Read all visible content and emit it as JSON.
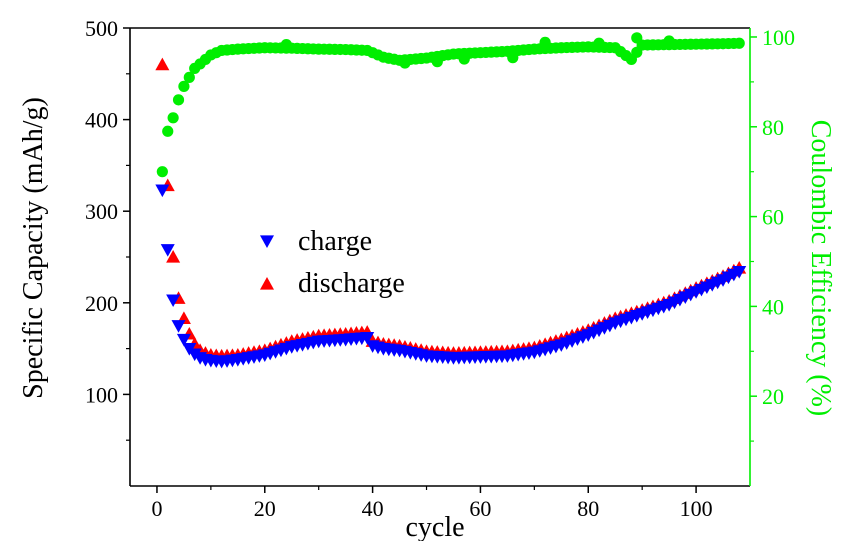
{
  "chart_data": {
    "type": "scatter",
    "xlabel": "cycle",
    "ylabel": "Specific Capacity (mAh/g)",
    "y2label": "Coulombic Efficiency (%)",
    "xlim": [
      -5,
      110
    ],
    "ylim": [
      0,
      500
    ],
    "y2lim": [
      0,
      102
    ],
    "xticks": [
      0,
      20,
      40,
      60,
      80,
      100
    ],
    "yticks": [
      100,
      200,
      300,
      400,
      500
    ],
    "y2ticks": [
      20,
      40,
      60,
      80,
      100
    ],
    "legend": {
      "position": "center-left",
      "entries": [
        "charge",
        "discharge"
      ]
    },
    "colors": {
      "charge": "#0000ff",
      "discharge": "#ff0000",
      "efficiency": "#00ee00",
      "axis": "#000000",
      "right_axis": "#00ee00"
    },
    "anchors": {
      "charge": [
        [
          1,
          323
        ],
        [
          2,
          258
        ],
        [
          3,
          203
        ],
        [
          4,
          175
        ],
        [
          5,
          160
        ],
        [
          6,
          150
        ],
        [
          7,
          144
        ],
        [
          8,
          140
        ],
        [
          9,
          138
        ],
        [
          10,
          137
        ],
        [
          12,
          136
        ],
        [
          15,
          138
        ],
        [
          20,
          143
        ],
        [
          25,
          152
        ],
        [
          30,
          158
        ],
        [
          35,
          160
        ],
        [
          39,
          162
        ],
        [
          40,
          153
        ],
        [
          42,
          150
        ],
        [
          45,
          148
        ],
        [
          50,
          142
        ],
        [
          55,
          140
        ],
        [
          60,
          141
        ],
        [
          65,
          142
        ],
        [
          70,
          146
        ],
        [
          75,
          154
        ],
        [
          80,
          165
        ],
        [
          85,
          178
        ],
        [
          90,
          188
        ],
        [
          95,
          198
        ],
        [
          100,
          212
        ],
        [
          105,
          225
        ],
        [
          108,
          234
        ]
      ],
      "discharge": [
        [
          1,
          460
        ],
        [
          2,
          328
        ],
        [
          3,
          250
        ],
        [
          4,
          205
        ],
        [
          5,
          183
        ],
        [
          6,
          166
        ],
        [
          7,
          155
        ],
        [
          8,
          148
        ],
        [
          9,
          145
        ],
        [
          10,
          143
        ],
        [
          12,
          142
        ],
        [
          15,
          143
        ],
        [
          20,
          148
        ],
        [
          25,
          158
        ],
        [
          30,
          164
        ],
        [
          35,
          166
        ],
        [
          39,
          168
        ],
        [
          40,
          158
        ],
        [
          42,
          155
        ],
        [
          45,
          153
        ],
        [
          50,
          147
        ],
        [
          55,
          145
        ],
        [
          60,
          146
        ],
        [
          65,
          147
        ],
        [
          70,
          151
        ],
        [
          75,
          160
        ],
        [
          80,
          170
        ],
        [
          85,
          183
        ],
        [
          90,
          192
        ],
        [
          95,
          202
        ],
        [
          100,
          216
        ],
        [
          105,
          229
        ],
        [
          108,
          238
        ]
      ],
      "efficiency": [
        [
          1,
          70
        ],
        [
          2,
          79
        ],
        [
          3,
          82
        ],
        [
          4,
          86
        ],
        [
          5,
          89
        ],
        [
          6,
          91
        ],
        [
          7,
          93
        ],
        [
          8,
          94
        ],
        [
          9,
          95
        ],
        [
          10,
          96
        ],
        [
          12,
          97
        ],
        [
          15,
          97.3
        ],
        [
          20,
          97.6
        ],
        [
          25,
          97.5
        ],
        [
          30,
          97.3
        ],
        [
          35,
          97.2
        ],
        [
          39,
          97
        ],
        [
          42,
          95.5
        ],
        [
          45,
          94.8
        ],
        [
          50,
          95.3
        ],
        [
          55,
          96.2
        ],
        [
          60,
          96.5
        ],
        [
          65,
          96.8
        ],
        [
          70,
          97.3
        ],
        [
          75,
          97.6
        ],
        [
          80,
          97.8
        ],
        [
          85,
          97.6
        ],
        [
          88,
          95
        ],
        [
          90,
          98.2
        ],
        [
          95,
          98.3
        ],
        [
          100,
          98.4
        ],
        [
          105,
          98.5
        ],
        [
          108,
          98.6
        ]
      ]
    },
    "outliers": {
      "efficiency": [
        [
          24,
          98.3
        ],
        [
          46,
          94.2
        ],
        [
          52,
          94.5
        ],
        [
          57,
          95.1
        ],
        [
          66,
          95.4
        ],
        [
          72,
          98.8
        ],
        [
          82,
          98.6
        ],
        [
          89,
          99.8
        ],
        [
          95,
          99.1
        ]
      ]
    }
  }
}
